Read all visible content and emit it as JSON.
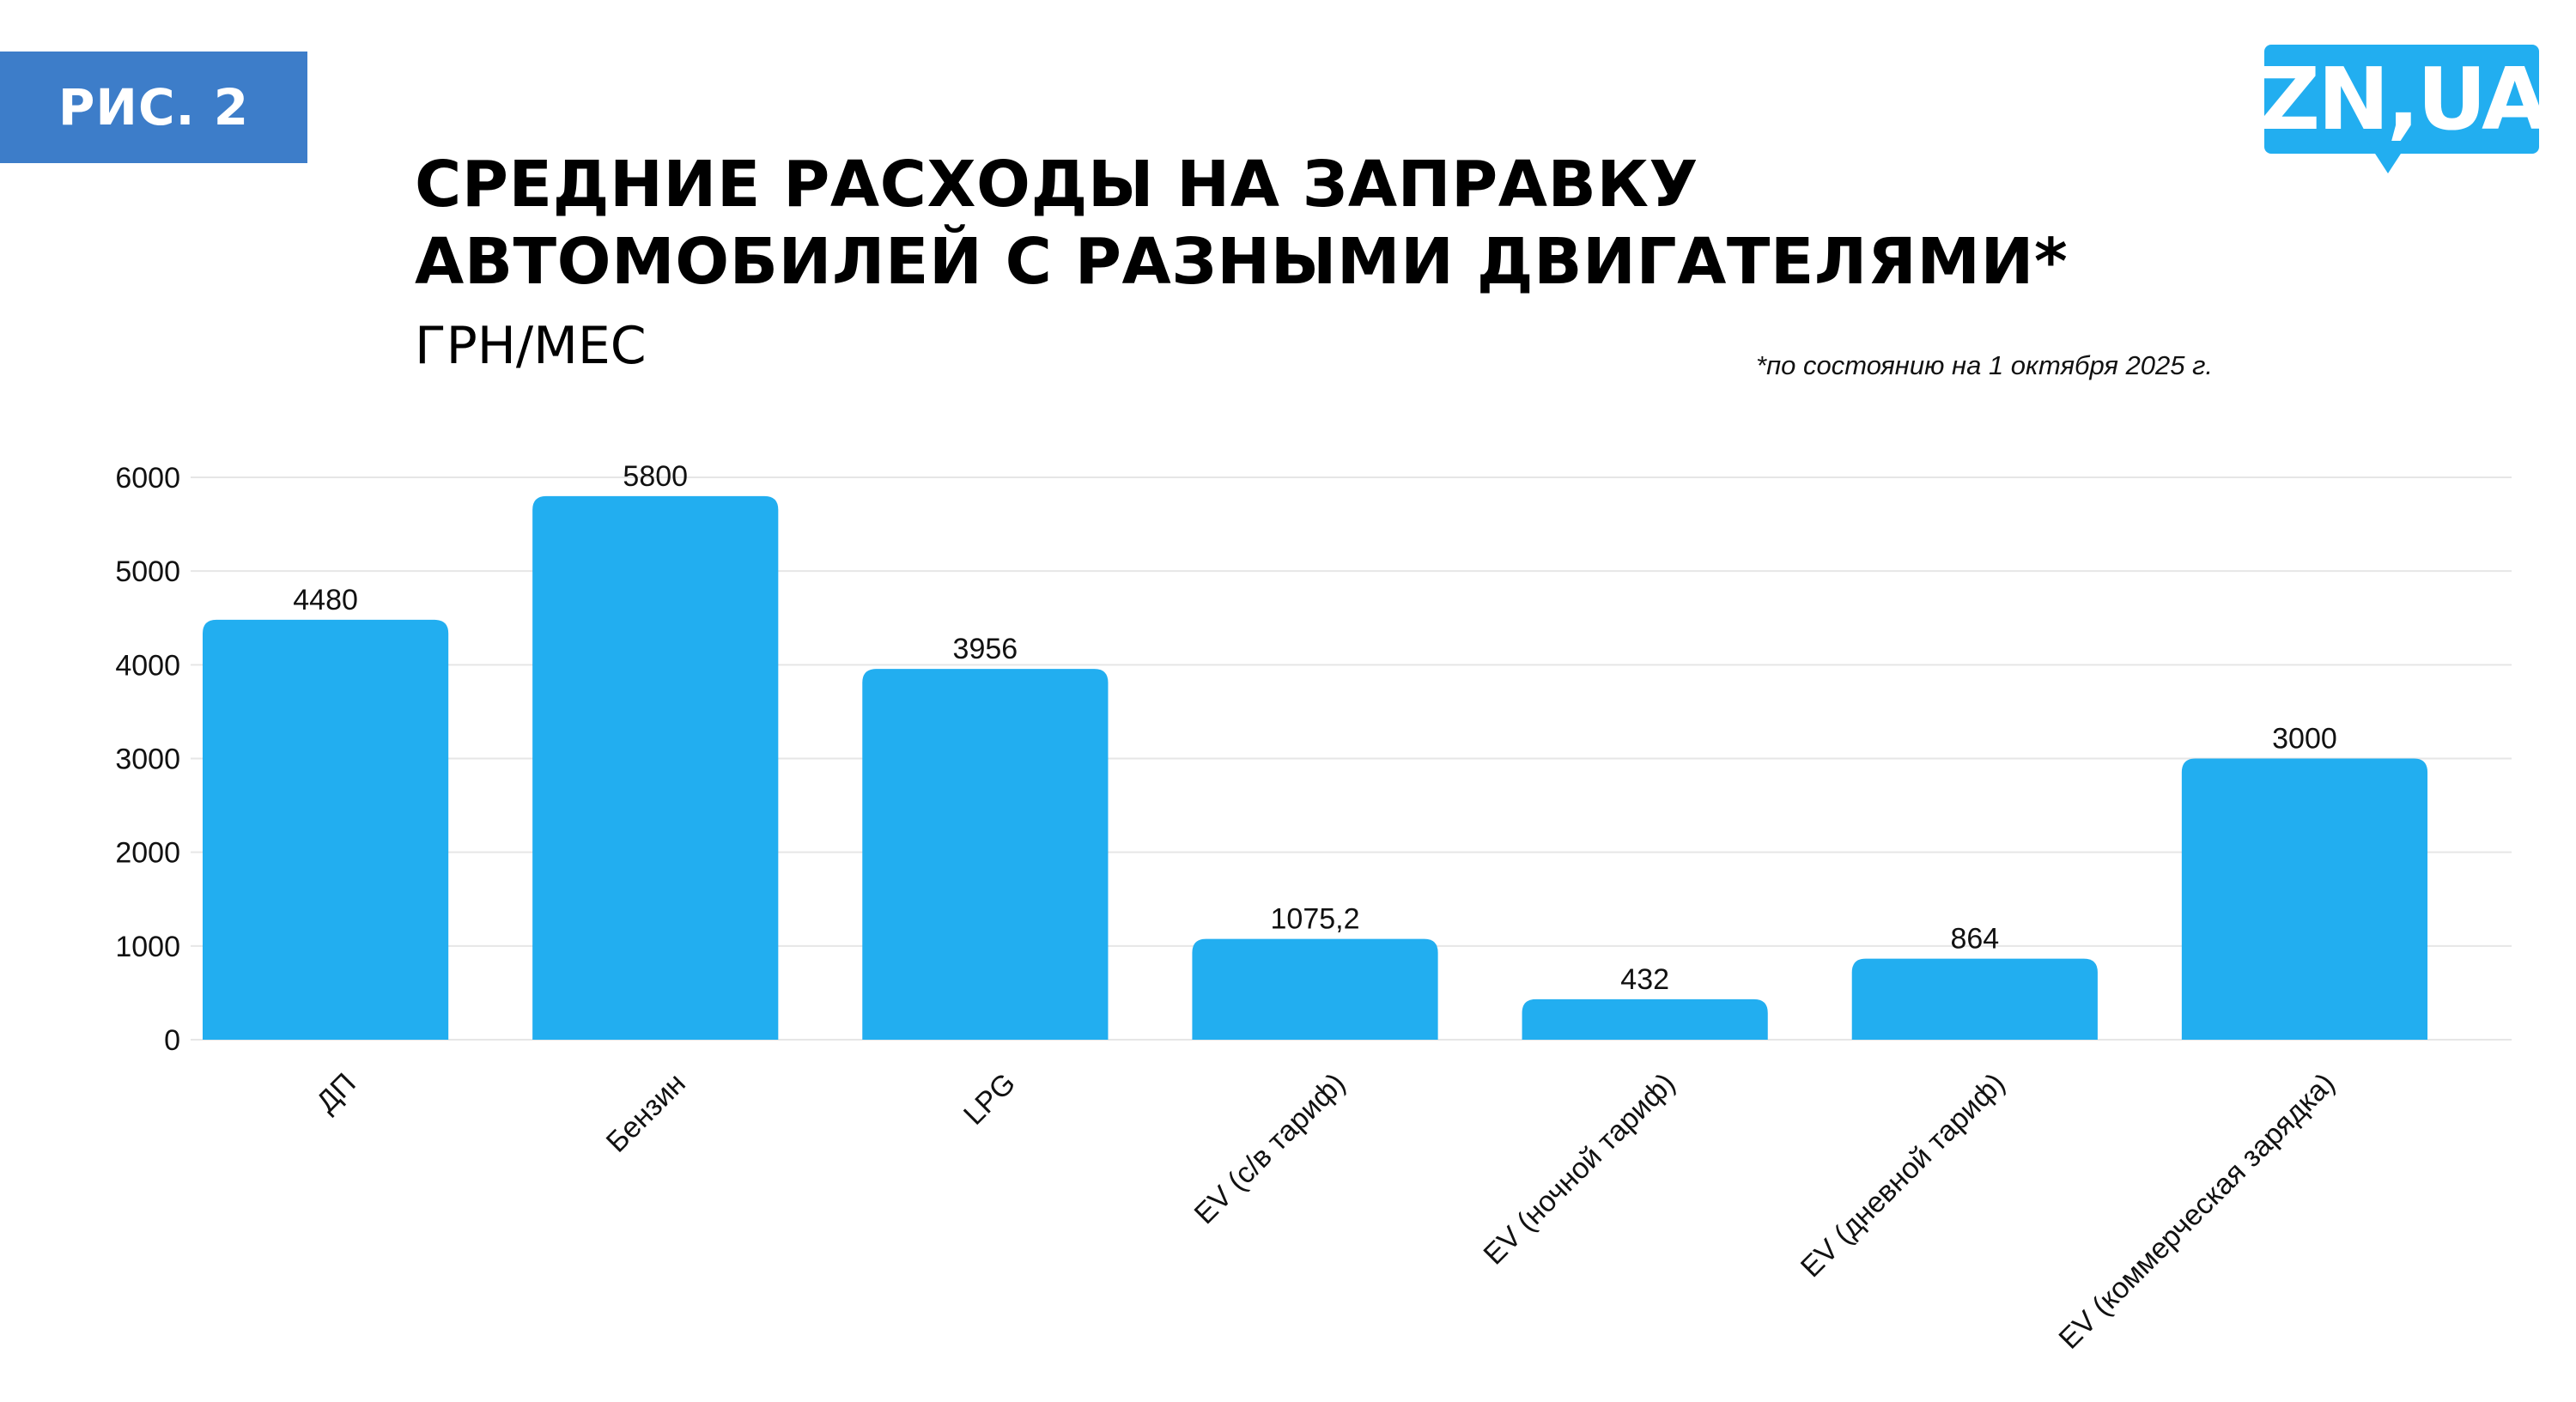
{
  "badge": "РИС. 2",
  "logo_text": "ZN,UA",
  "footnote": "*по состоянию на 1 октября 2025 г.",
  "colors": {
    "bar": "#22aef0",
    "badge": "#3d7dc9",
    "grid": "#e6e6e6"
  },
  "chart_data": {
    "type": "bar",
    "title_lines": [
      "СРЕДНИЕ РАСХОДЫ НА ЗАПРАВКУ",
      "АВТОМОБИЛЕЙ С РАЗНЫМИ ДВИГАТЕЛЯМИ*"
    ],
    "subtitle": "ГРН/МЕС",
    "categories": [
      "ДП",
      "Бензин",
      "LPG",
      "EV (с/в тариф)",
      "EV (ночной тариф)",
      "EV (дневной тариф)",
      "EV (коммерческая зарядка)"
    ],
    "values": [
      4480,
      5800,
      3956,
      1075.2,
      432,
      864,
      3000
    ],
    "value_labels": [
      "4480",
      "5800",
      "3956",
      "1075,2",
      "432",
      "864",
      "3000"
    ],
    "ylim": [
      0,
      6000
    ],
    "yticks": [
      0,
      1000,
      2000,
      3000,
      4000,
      5000,
      6000
    ],
    "grid": true,
    "legend": "none"
  }
}
